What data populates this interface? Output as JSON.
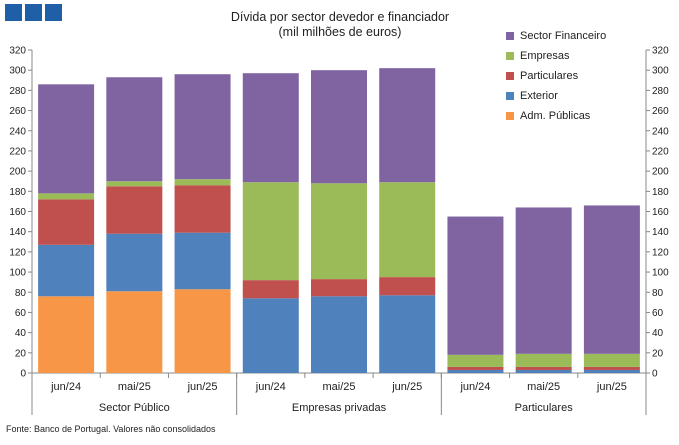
{
  "header": {
    "title": "Dívida por sector devedor e financiador",
    "subtitle": "(mil milhões de euros)"
  },
  "footer": {
    "source": "Fonte: Banco de Portugal. Valores não consolidados"
  },
  "chart_data": {
    "type": "bar",
    "stacked": true,
    "title": "Dívida por sector devedor e financiador",
    "subtitle": "(mil milhões de euros)",
    "ylim": [
      0,
      320
    ],
    "yticks": [
      0,
      20,
      40,
      60,
      80,
      100,
      120,
      140,
      160,
      180,
      200,
      220,
      240,
      260,
      280,
      300,
      320
    ],
    "grid": false,
    "legend_position": "top-right",
    "groups": [
      {
        "label": "Sector Público",
        "categories": [
          "jun/24",
          "mai/25",
          "jun/25"
        ]
      },
      {
        "label": "Empresas privadas",
        "categories": [
          "jun/24",
          "mai/25",
          "jun/25"
        ]
      },
      {
        "label": "Particulares",
        "categories": [
          "jun/24",
          "mai/25",
          "jun/25"
        ]
      }
    ],
    "categories": [
      "jun/24",
      "mai/25",
      "jun/25",
      "jun/24",
      "mai/25",
      "jun/25",
      "jun/24",
      "mai/25",
      "jun/25"
    ],
    "series": [
      {
        "name": "Adm. Públicas",
        "color": "#f79646",
        "values": [
          76,
          81,
          83,
          0,
          0,
          0,
          0,
          0,
          0
        ]
      },
      {
        "name": "Exterior",
        "color": "#4f81bd",
        "values": [
          51,
          57,
          56,
          74,
          76,
          77,
          3,
          3,
          3
        ]
      },
      {
        "name": "Particulares",
        "color": "#c0504d",
        "values": [
          45,
          47,
          47,
          18,
          17,
          18,
          3,
          3,
          3
        ]
      },
      {
        "name": "Empresas",
        "color": "#9bbb59",
        "values": [
          6,
          5,
          6,
          97,
          95,
          94,
          12,
          13,
          13
        ]
      },
      {
        "name": "Sector Financeiro",
        "color": "#8064a2",
        "values": [
          108,
          103,
          104,
          108,
          112,
          113,
          137,
          145,
          147
        ]
      }
    ]
  }
}
